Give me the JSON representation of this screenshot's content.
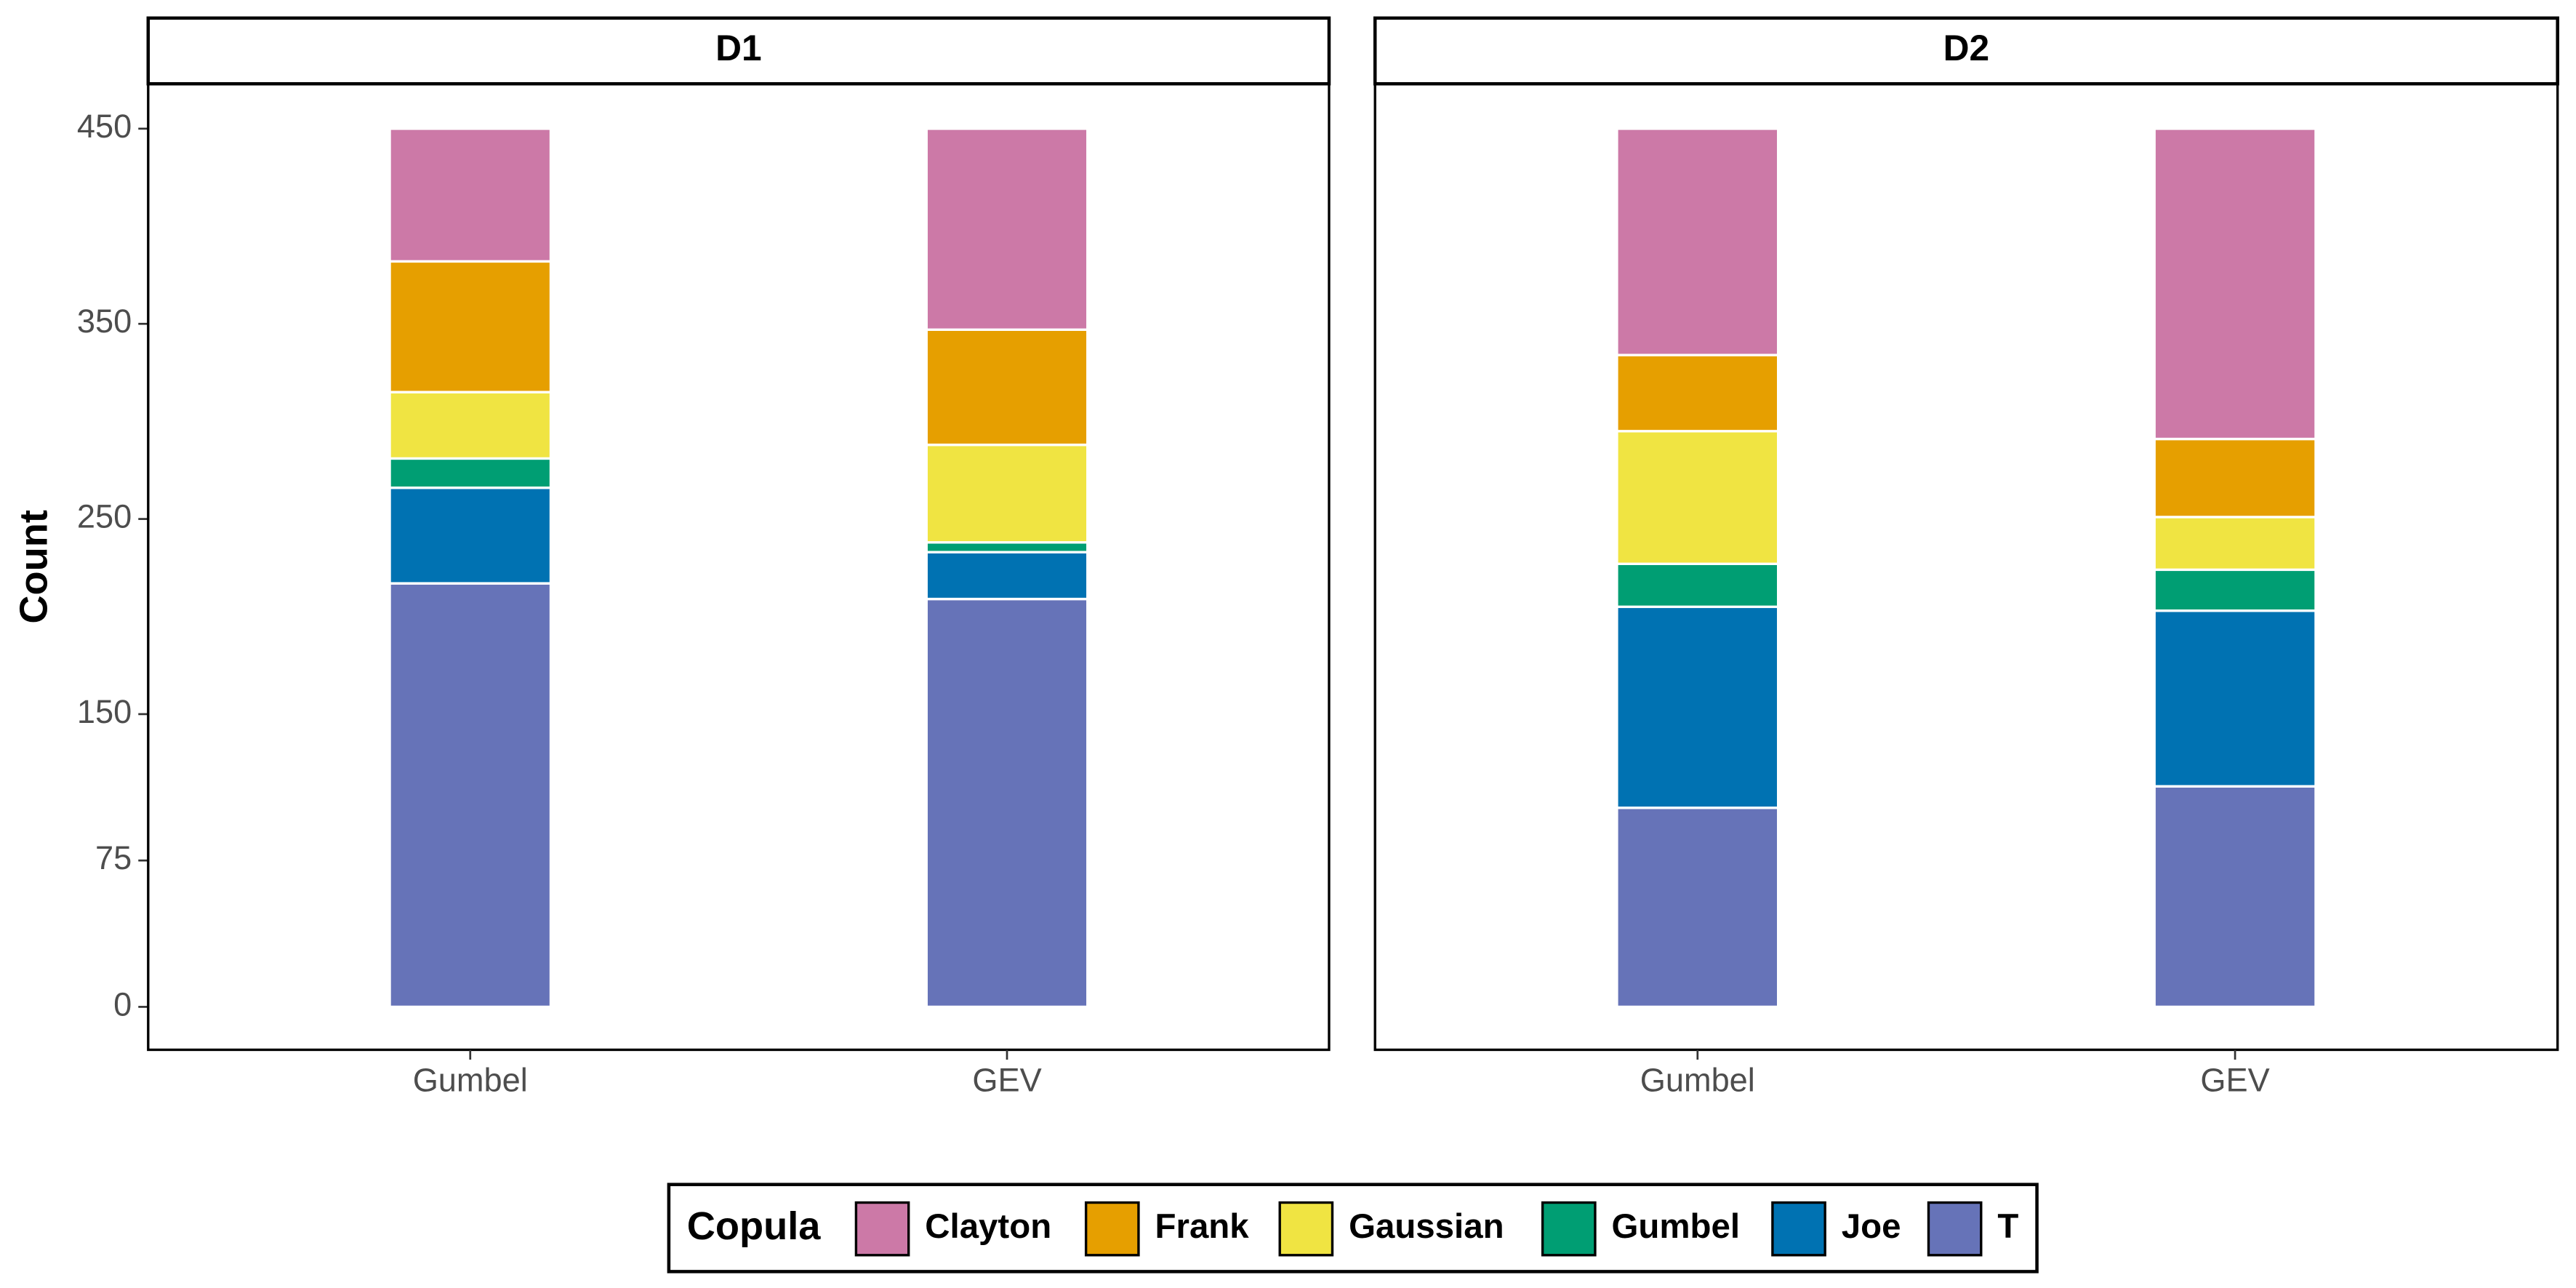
{
  "chart_data": {
    "type": "stacked-bar",
    "y_label": "Count",
    "legend_title": "Copula",
    "panels": [
      "D1",
      "D2"
    ],
    "categories": [
      "Gumbel",
      "GEV"
    ],
    "ylim": [
      -22,
      473
    ],
    "yticks": [
      0,
      75,
      150,
      250,
      350,
      450
    ],
    "series": [
      {
        "name": "Clayton",
        "color": "#CC79A7",
        "values": [
          [
            68,
            103
          ],
          [
            116,
            159
          ]
        ]
      },
      {
        "name": "Frank",
        "color": "#E69F00",
        "values": [
          [
            67,
            59
          ],
          [
            39,
            40
          ]
        ]
      },
      {
        "name": "Gaussian",
        "color": "#F0E442",
        "values": [
          [
            34,
            50
          ],
          [
            68,
            27
          ]
        ]
      },
      {
        "name": "Gumbel",
        "color": "#009E73",
        "values": [
          [
            15,
            5
          ],
          [
            22,
            21
          ]
        ]
      },
      {
        "name": "Joe",
        "color": "#0072B2",
        "values": [
          [
            49,
            24
          ],
          [
            103,
            90
          ]
        ]
      },
      {
        "name": "T",
        "color": "#6673B8",
        "values": [
          [
            217,
            209
          ],
          [
            102,
            113
          ]
        ]
      }
    ]
  }
}
